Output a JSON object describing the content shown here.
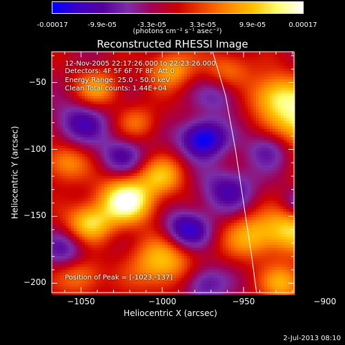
{
  "colorbar": {
    "ticks": [
      "-0.00017",
      "-9.9e-05",
      "-3.3e-05",
      "3.3e-05",
      "9.9e-05",
      "0.00017"
    ],
    "unit": "(photons cm⁻² s⁻¹ asec⁻²)",
    "colors": [
      "#0000ff",
      "#3b00c8",
      "#55009a",
      "#7a2eaa",
      "#a10050",
      "#cc0000",
      "#ee4400",
      "#ff8800",
      "#ffc000",
      "#ffff70",
      "#ffffff"
    ]
  },
  "chart_data": {
    "type": "heatmap",
    "title": "Reconstructed RHESSI Image",
    "xlabel": "Heliocentric X (arcsec)",
    "ylabel": "Heliocentric Y (arcsec)",
    "xlim": [
      -1068,
      -919
    ],
    "ylim": [
      -207,
      -27
    ],
    "xticks": [
      -1050,
      -1000,
      -950,
      -900
    ],
    "yticks": [
      -50,
      -100,
      -150,
      -200
    ],
    "xtick_labels": [
      "−1050",
      "−1000",
      "−950",
      "−900"
    ],
    "ytick_labels": [
      "−50",
      "−100",
      "−150",
      "−200"
    ],
    "annotations": [
      "12-Nov-2005 22:17:26.000 to 22:23:26.000",
      "Detectors: 4F 5F 6F 7F 8F, Att 0",
      "Energy Range: 25.0 - 50.0 keV",
      "Clean     Total counts: 1.44E+04"
    ],
    "peak_label": "Position of Peak = [-1023,-137]",
    "peak": [
      -1023,
      -137
    ],
    "limb_line": [
      [
        -969,
        -27
      ],
      [
        -961,
        -60
      ],
      [
        -955,
        -100
      ],
      [
        -950,
        -140
      ],
      [
        -945,
        -180
      ],
      [
        -942,
        -207
      ]
    ],
    "blobs": [
      {
        "x": -1022,
        "y": -138,
        "v": 1.0,
        "s": 12
      },
      {
        "x": -1045,
        "y": -155,
        "v": 0.7,
        "s": 10
      },
      {
        "x": -1000,
        "y": -120,
        "v": 0.55,
        "s": 10
      },
      {
        "x": -1060,
        "y": -110,
        "v": 0.5,
        "s": 10
      },
      {
        "x": -1000,
        "y": -185,
        "v": 0.65,
        "s": 14
      },
      {
        "x": -1050,
        "y": -195,
        "v": 0.45,
        "s": 10
      },
      {
        "x": -945,
        "y": -165,
        "v": 0.55,
        "s": 12
      },
      {
        "x": -920,
        "y": -160,
        "v": 0.65,
        "s": 12
      },
      {
        "x": -910,
        "y": -80,
        "v": 0.9,
        "s": 14
      },
      {
        "x": -930,
        "y": -60,
        "v": 0.7,
        "s": 12
      },
      {
        "x": -895,
        "y": -120,
        "v": 0.6,
        "s": 10
      },
      {
        "x": -1040,
        "y": -55,
        "v": 0.5,
        "s": 10
      },
      {
        "x": -995,
        "y": -40,
        "v": 0.55,
        "s": 10
      },
      {
        "x": -960,
        "y": -40,
        "v": 0.4,
        "s": 10
      },
      {
        "x": -1015,
        "y": -80,
        "v": 0.35,
        "s": 9
      },
      {
        "x": -925,
        "y": -200,
        "v": 0.55,
        "s": 10
      },
      {
        "x": -975,
        "y": -92,
        "v": -0.85,
        "s": 10
      },
      {
        "x": -985,
        "y": -160,
        "v": -0.7,
        "s": 10
      },
      {
        "x": -1050,
        "y": -80,
        "v": -0.5,
        "s": 12
      },
      {
        "x": -960,
        "y": -130,
        "v": -0.5,
        "s": 12
      },
      {
        "x": -1025,
        "y": -105,
        "v": -0.45,
        "s": 10
      },
      {
        "x": -935,
        "y": -100,
        "v": -0.4,
        "s": 10
      },
      {
        "x": -915,
        "y": -140,
        "v": -0.35,
        "s": 8
      },
      {
        "x": -975,
        "y": -200,
        "v": -0.5,
        "s": 10
      },
      {
        "x": -1060,
        "y": -175,
        "v": -0.4,
        "s": 10
      },
      {
        "x": -965,
        "y": -60,
        "v": -0.35,
        "s": 10
      }
    ]
  },
  "datestamp": "2-Jul-2013 08:10"
}
